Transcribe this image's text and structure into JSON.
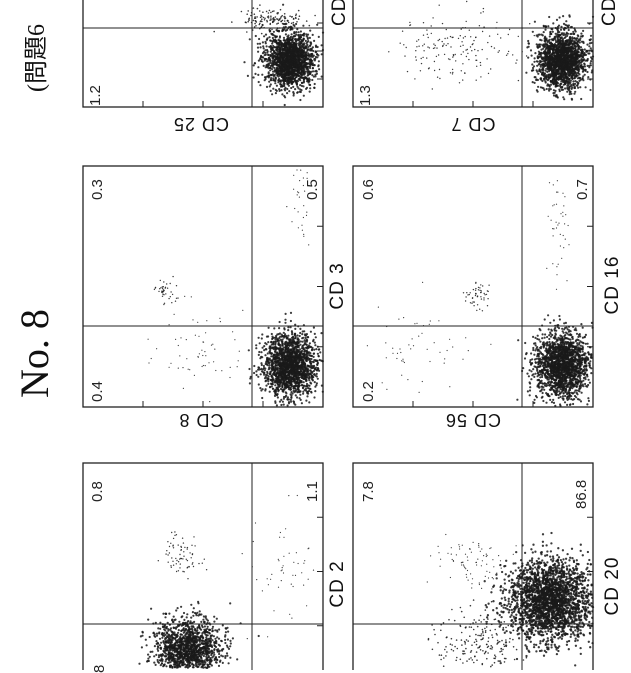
{
  "header": {
    "question": "(問題6",
    "number": "No.  8"
  },
  "panels": [
    {
      "id": "cd25",
      "label": "CD 25",
      "other": "CD",
      "pct": {
        "a": "1.2"
      }
    },
    {
      "id": "cd7",
      "label": "CD 7",
      "other": "CD",
      "pct": {
        "a": "1.3"
      }
    },
    {
      "id": "cd8",
      "label": "CD 8",
      "other": "CD 3",
      "pct": {
        "a": "0.3",
        "b": "0.5",
        "c": "0.4"
      }
    },
    {
      "id": "cd56",
      "label": "CD 56",
      "other": "CD 16",
      "pct": {
        "a": "0.6",
        "b": "0.7",
        "c": "0.2"
      }
    },
    {
      "id": "cd2x",
      "label": "",
      "other": "CD 2",
      "pct": {
        "a": "0.8",
        "b": "1.1",
        "c": "8"
      }
    },
    {
      "id": "cd20x",
      "label": "",
      "other": "CD 20",
      "pct": {
        "a": "7.8",
        "b": "86.8"
      }
    }
  ]
}
